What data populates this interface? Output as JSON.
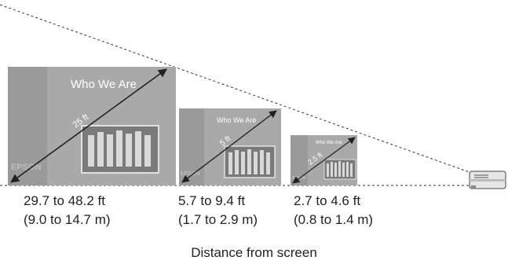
{
  "screens": [
    {
      "title": "Who We Are",
      "brand": "EPSON",
      "diagonal": "25 ft",
      "distance_ft": "29.7 to 48.2 ft",
      "distance_m": "(9.0 to 14.7 m)"
    },
    {
      "title": "Who We Are",
      "brand": "EPSON",
      "diagonal": "5 ft",
      "distance_ft": "5.7 to 9.4 ft",
      "distance_m": "(1.7 to 2.9 m)"
    },
    {
      "title": "Who We Are",
      "brand": "EPSON",
      "diagonal": "2.5 ft",
      "distance_ft": "2.7 to 4.6 ft",
      "distance_m": "(0.8 to 1.4 m)"
    }
  ],
  "caption": "Distance from screen",
  "colors": {
    "screen_outer": "#9a9a9a",
    "screen_inner": "#a8a8a8",
    "photo": "#7d7d7d",
    "line": "#333333",
    "text": "#222222"
  }
}
